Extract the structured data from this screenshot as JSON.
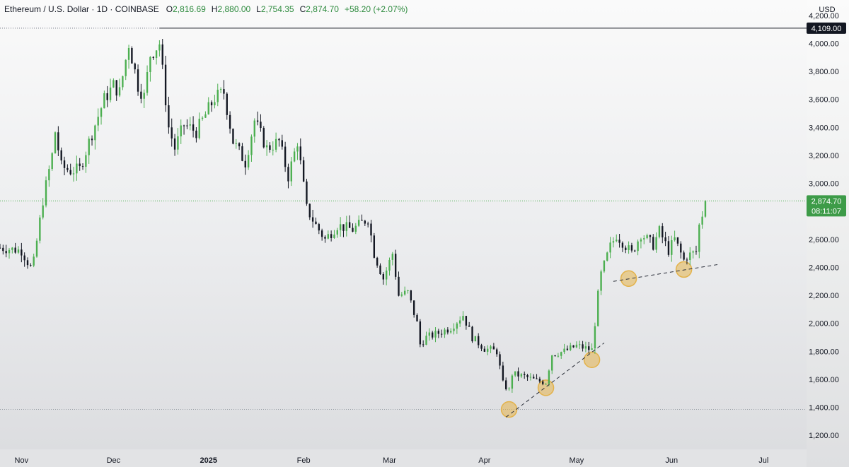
{
  "legend": {
    "symbol": "Ethereum / U.S. Dollar · 1D · COINBASE",
    "open_label": "O",
    "open": "2,816.69",
    "high_label": "H",
    "high": "2,880.00",
    "low_label": "L",
    "low": "2,754.35",
    "close_label": "C",
    "close": "2,874.70",
    "change": "+58.20 (+2.07%)"
  },
  "currency": "USD",
  "price_axis": {
    "ticks": [
      "1,200.00",
      "1,400.00",
      "1,600.00",
      "1,800.00",
      "2,000.00",
      "2,200.00",
      "2,400.00",
      "2,600.00",
      "2,800.00",
      "3,000.00",
      "3,200.00",
      "3,400.00",
      "3,600.00",
      "3,800.00",
      "4,000.00",
      "4,200.00"
    ],
    "tick_values": [
      1200,
      1400,
      1600,
      1800,
      2000,
      2200,
      2400,
      2600,
      2800,
      3000,
      3200,
      3400,
      3600,
      3800,
      4000,
      4200
    ]
  },
  "time_axis": {
    "labels": [
      {
        "text": "Nov",
        "date": "2024-11-01",
        "bold": false
      },
      {
        "text": "Dec",
        "date": "2024-12-01",
        "bold": false
      },
      {
        "text": "2025",
        "date": "2025-01-01",
        "bold": true
      },
      {
        "text": "Feb",
        "date": "2025-02-01",
        "bold": false
      },
      {
        "text": "Mar",
        "date": "2025-03-01",
        "bold": false
      },
      {
        "text": "Apr",
        "date": "2025-04-01",
        "bold": false
      },
      {
        "text": "May",
        "date": "2025-05-01",
        "bold": false
      },
      {
        "text": "Jun",
        "date": "2025-06-01",
        "bold": false
      },
      {
        "text": "Jul",
        "date": "2025-07-01",
        "bold": false
      }
    ]
  },
  "current_price": {
    "value": "2,874.70",
    "countdown": "08:11:07",
    "price": 2874.7
  },
  "resistance": {
    "value": "4,109.00",
    "price": 4109,
    "start_date": "2024-12-16"
  },
  "support": {
    "price": 1385
  },
  "colors": {
    "up": "#4caf50",
    "down": "#131722",
    "current_price_bg": "#3d9b48",
    "marker_fill": "#e3b24a"
  },
  "chart_data": {
    "type": "candlestick",
    "title": "Ethereum / U.S. Dollar · 1D · COINBASE",
    "xlabel": "",
    "ylabel": "USD",
    "ylim": [
      1100,
      4310
    ],
    "x_range": [
      "2024-10-25",
      "2025-07-15"
    ],
    "anchors": [
      {
        "date": "2024-10-25",
        "price": 2540
      },
      {
        "date": "2024-11-01",
        "price": 2520
      },
      {
        "date": "2024-11-04",
        "price": 2400
      },
      {
        "date": "2024-11-05",
        "price": 2440
      },
      {
        "date": "2024-11-08",
        "price": 2880
      },
      {
        "date": "2024-11-11",
        "price": 3200
      },
      {
        "date": "2024-11-12",
        "price": 3370
      },
      {
        "date": "2024-11-14",
        "price": 3120
      },
      {
        "date": "2024-11-17",
        "price": 3090
      },
      {
        "date": "2024-11-20",
        "price": 3100
      },
      {
        "date": "2024-11-24",
        "price": 3360
      },
      {
        "date": "2024-11-28",
        "price": 3600
      },
      {
        "date": "2024-12-01",
        "price": 3700
      },
      {
        "date": "2024-12-03",
        "price": 3650
      },
      {
        "date": "2024-12-06",
        "price": 4000
      },
      {
        "date": "2024-12-09",
        "price": 3700
      },
      {
        "date": "2024-12-11",
        "price": 3620
      },
      {
        "date": "2024-12-13",
        "price": 3920
      },
      {
        "date": "2024-12-16",
        "price": 4000
      },
      {
        "date": "2024-12-19",
        "price": 3400
      },
      {
        "date": "2024-12-21",
        "price": 3250
      },
      {
        "date": "2024-12-24",
        "price": 3420
      },
      {
        "date": "2024-12-28",
        "price": 3370
      },
      {
        "date": "2025-01-03",
        "price": 3610
      },
      {
        "date": "2025-01-06",
        "price": 3650
      },
      {
        "date": "2025-01-09",
        "price": 3300
      },
      {
        "date": "2025-01-13",
        "price": 3150
      },
      {
        "date": "2025-01-16",
        "price": 3450
      },
      {
        "date": "2025-01-20",
        "price": 3250
      },
      {
        "date": "2025-01-24",
        "price": 3300
      },
      {
        "date": "2025-01-27",
        "price": 3050
      },
      {
        "date": "2025-01-30",
        "price": 3300
      },
      {
        "date": "2025-02-02",
        "price": 2820
      },
      {
        "date": "2025-02-05",
        "price": 2700
      },
      {
        "date": "2025-02-08",
        "price": 2600
      },
      {
        "date": "2025-02-12",
        "price": 2700
      },
      {
        "date": "2025-02-17",
        "price": 2670
      },
      {
        "date": "2025-02-22",
        "price": 2750
      },
      {
        "date": "2025-02-24",
        "price": 2500
      },
      {
        "date": "2025-02-27",
        "price": 2320
      },
      {
        "date": "2025-03-02",
        "price": 2500
      },
      {
        "date": "2025-03-04",
        "price": 2200
      },
      {
        "date": "2025-03-07",
        "price": 2220
      },
      {
        "date": "2025-03-10",
        "price": 2000
      },
      {
        "date": "2025-03-11",
        "price": 1850
      },
      {
        "date": "2025-03-13",
        "price": 1900
      },
      {
        "date": "2025-03-17",
        "price": 1930
      },
      {
        "date": "2025-03-21",
        "price": 1970
      },
      {
        "date": "2025-03-25",
        "price": 2060
      },
      {
        "date": "2025-03-28",
        "price": 1900
      },
      {
        "date": "2025-04-01",
        "price": 1820
      },
      {
        "date": "2025-04-05",
        "price": 1800
      },
      {
        "date": "2025-04-07",
        "price": 1570
      },
      {
        "date": "2025-04-09",
        "price": 1520
      },
      {
        "date": "2025-04-10",
        "price": 1640
      },
      {
        "date": "2025-04-14",
        "price": 1620
      },
      {
        "date": "2025-04-18",
        "price": 1590
      },
      {
        "date": "2025-04-21",
        "price": 1580
      },
      {
        "date": "2025-04-23",
        "price": 1780
      },
      {
        "date": "2025-04-27",
        "price": 1800
      },
      {
        "date": "2025-05-01",
        "price": 1840
      },
      {
        "date": "2025-05-06",
        "price": 1810
      },
      {
        "date": "2025-05-08",
        "price": 2200
      },
      {
        "date": "2025-05-09",
        "price": 2350
      },
      {
        "date": "2025-05-12",
        "price": 2550
      },
      {
        "date": "2025-05-14",
        "price": 2630
      },
      {
        "date": "2025-05-16",
        "price": 2580
      },
      {
        "date": "2025-05-19",
        "price": 2500
      },
      {
        "date": "2025-05-22",
        "price": 2640
      },
      {
        "date": "2025-05-26",
        "price": 2560
      },
      {
        "date": "2025-05-28",
        "price": 2660
      },
      {
        "date": "2025-05-31",
        "price": 2520
      },
      {
        "date": "2025-06-02",
        "price": 2600
      },
      {
        "date": "2025-06-05",
        "price": 2450
      },
      {
        "date": "2025-06-06",
        "price": 2480
      },
      {
        "date": "2025-06-09",
        "price": 2510
      },
      {
        "date": "2025-06-10",
        "price": 2700
      },
      {
        "date": "2025-06-11",
        "price": 2780
      },
      {
        "date": "2025-06-12",
        "price": 2875
      }
    ],
    "marked_lows": [
      {
        "date": "2025-04-09",
        "price": 1385
      },
      {
        "date": "2025-04-21",
        "price": 1540
      },
      {
        "date": "2025-05-06",
        "price": 1740
      },
      {
        "date": "2025-05-18",
        "price": 2320
      },
      {
        "date": "2025-06-05",
        "price": 2385
      }
    ],
    "trendlines": [
      {
        "from": {
          "date": "2025-04-08",
          "price": 1330
        },
        "to": {
          "date": "2025-05-10",
          "price": 1860
        }
      },
      {
        "from": {
          "date": "2025-05-13",
          "price": 2300
        },
        "to": {
          "date": "2025-06-16",
          "price": 2420
        }
      }
    ]
  }
}
